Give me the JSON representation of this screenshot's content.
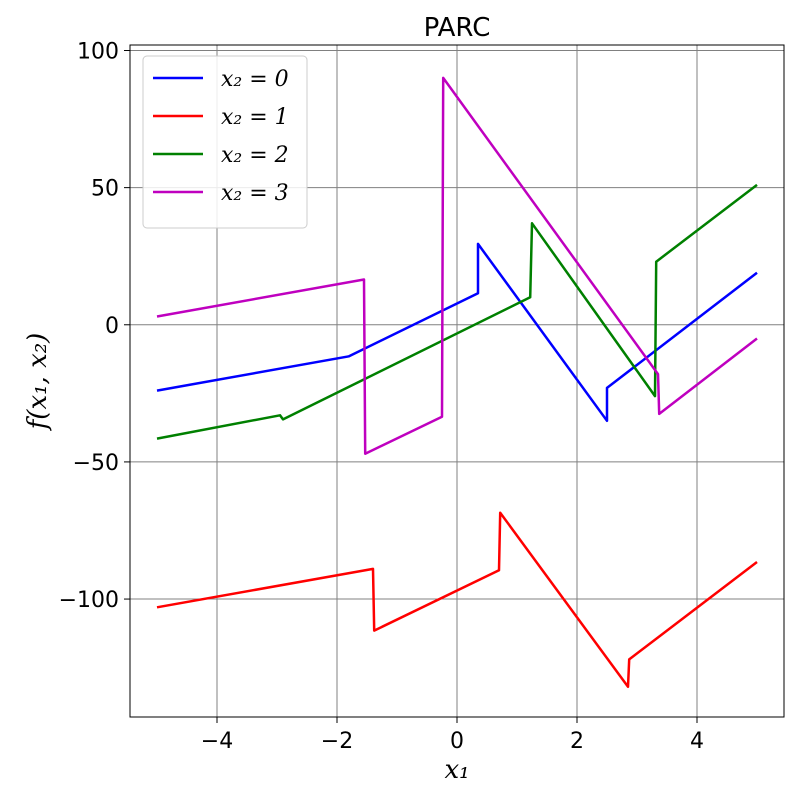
{
  "chart_data": {
    "type": "line",
    "title": "PARC",
    "xlabel": "x₁",
    "ylabel": "f(x₁, x₂)",
    "xlim": [
      -5.45,
      5.45
    ],
    "ylim": [
      -143,
      102
    ],
    "xticks": [
      -4,
      -2,
      0,
      2,
      4
    ],
    "xtick_labels": [
      "−4",
      "−2",
      "0",
      "2",
      "4"
    ],
    "yticks": [
      -100,
      -50,
      0,
      50,
      100
    ],
    "ytick_labels": [
      "−100",
      "−50",
      "0",
      "50",
      "100"
    ],
    "grid": true,
    "legend_position": "top-left",
    "series": [
      {
        "name": "x₂ = 0",
        "color": "#0000ff",
        "points": [
          [
            -5,
            -24
          ],
          [
            -1.8,
            -11.5
          ],
          [
            0.35,
            11.5
          ],
          [
            0.35,
            29.5
          ],
          [
            2.5,
            -35
          ],
          [
            2.5,
            -23
          ],
          [
            5,
            19
          ]
        ]
      },
      {
        "name": "x₂ = 1",
        "color": "#ff0000",
        "points": [
          [
            -5,
            -103
          ],
          [
            -1.4,
            -89
          ],
          [
            -1.38,
            -111.5
          ],
          [
            0.7,
            -89.5
          ],
          [
            0.72,
            -68.5
          ],
          [
            2.85,
            -132
          ],
          [
            2.87,
            -122
          ],
          [
            5,
            -86.5
          ]
        ]
      },
      {
        "name": "x₂ = 2",
        "color": "#008000",
        "points": [
          [
            -5,
            -41.5
          ],
          [
            -2.95,
            -33
          ],
          [
            -2.9,
            -34.5
          ],
          [
            1.22,
            10
          ],
          [
            1.25,
            37
          ],
          [
            3.3,
            -26
          ],
          [
            3.32,
            23
          ],
          [
            5,
            51
          ]
        ]
      },
      {
        "name": "x₂ = 3",
        "color": "#bf00bf",
        "points": [
          [
            -5,
            3
          ],
          [
            -1.55,
            16.5
          ],
          [
            -1.53,
            -47
          ],
          [
            -0.25,
            -33.5
          ],
          [
            -0.23,
            90
          ],
          [
            3.35,
            -18
          ],
          [
            3.37,
            -32.5
          ],
          [
            5,
            -5
          ]
        ]
      }
    ]
  }
}
